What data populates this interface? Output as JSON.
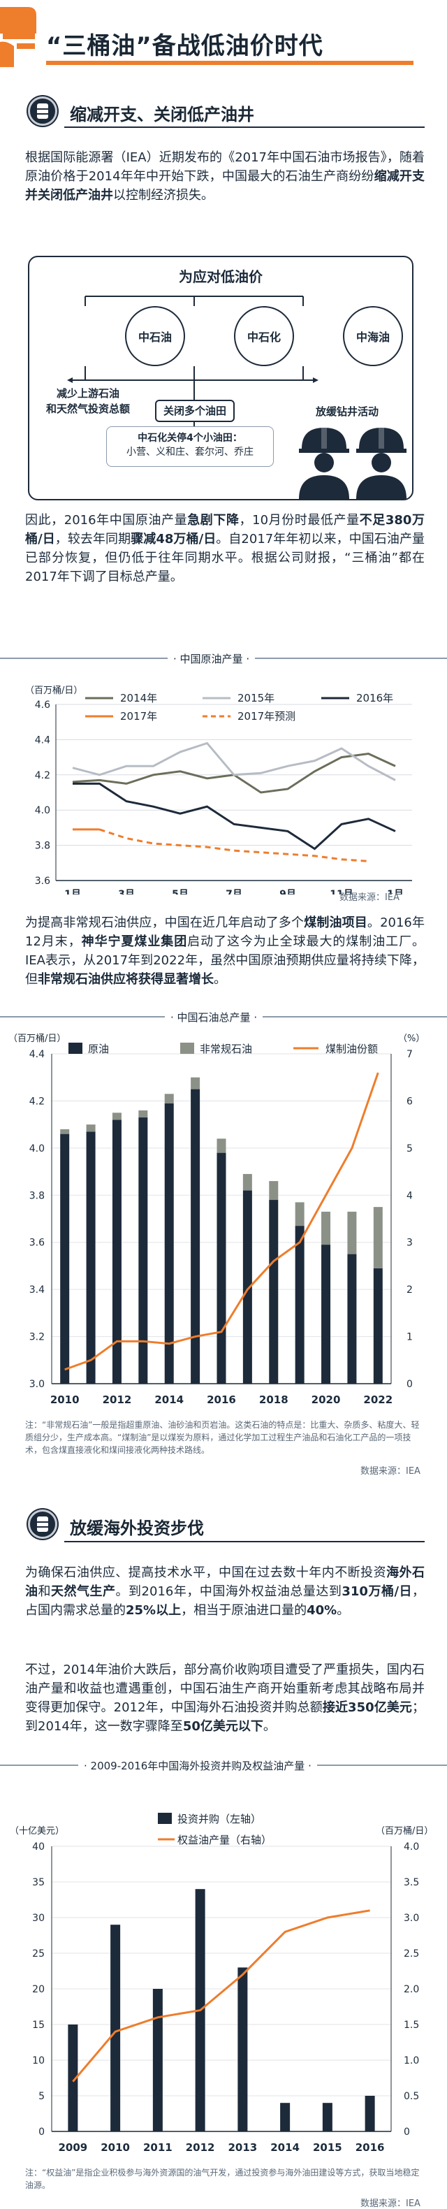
{
  "header": {
    "title": "“三桶油”备战低油价时代",
    "accent_color": "#ee7d2c",
    "dark_color": "#1d2a3a"
  },
  "section1": {
    "title": "缩减开支、关闭低产油井",
    "para1": [
      {
        "t": "根据国际能源署（IEA）近期发布的《2017年中国石油市场报告》，随着原油价格于2014年年中开始下跌，中国最大的石油生产商纷纷",
        "b": false
      },
      {
        "t": "缩减开支并关闭低产油井",
        "b": true
      },
      {
        "t": "以控制经济损失。",
        "b": false
      }
    ],
    "diagram": {
      "title": "为应对低油价",
      "companies": [
        "中石油",
        "中石化",
        "中海油"
      ],
      "action_left_1": "减少上游石油",
      "action_left_2": "和天然气投资总额",
      "action_mid": "关闭多个油田",
      "action_right": "放缓钻井活动",
      "sub_title": "中石化关停4个小油田：",
      "sub_list": "小营、义和庄、套尔河、乔庄"
    },
    "para2": [
      {
        "t": "因此，2016年中国原油产量",
        "b": false
      },
      {
        "t": "急剧下降",
        "b": true
      },
      {
        "t": "，10月份时最低产量",
        "b": false
      },
      {
        "t": "不足380万桶/日",
        "b": true
      },
      {
        "t": "，较去年同期",
        "b": false
      },
      {
        "t": "骤减48万桶/日",
        "b": true
      },
      {
        "t": "。自2017年年初以来，中国石油产量已部分恢复，但仍低于往年同期水平。根据公司财报，“三桶油”都在2017年下调了目标总产量。",
        "b": false
      }
    ]
  },
  "chart1": {
    "tag": "中国原油产量",
    "source": "数据来源：IEA"
  },
  "para3": [
    {
      "t": "为提高非常规石油供应，中国在近几年启动了多个",
      "b": false
    },
    {
      "t": "煤制油项目",
      "b": true
    },
    {
      "t": "。2016年12月末，",
      "b": false
    },
    {
      "t": "神华宁夏煤业集团",
      "b": true
    },
    {
      "t": "启动了这今为止全球最大的煤制油工厂。IEA表示，从2017年到2022年，虽然中国原油预期供应量将持续下降，但",
      "b": false
    },
    {
      "t": "非常规石油供应将获得显著增长",
      "b": true
    },
    {
      "t": "。",
      "b": false
    }
  ],
  "chart2": {
    "tag": "中国石油总产量",
    "note": "注：“非常规石油”一般是指超重原油、油砂油和页岩油。这类石油的特点是：比重大、杂质多、粘度大、轻质组分少，生产成本高。“煤制油”是以煤炭为原料，通过化学加工过程生产油品和石油化工产品的一项技术，包含煤直接液化和煤间接液化两种技术路线。",
    "source": "数据来源：IEA"
  },
  "section2": {
    "title": "放缓海外投资步伐",
    "para4": [
      {
        "t": "为确保石油供应、提高技术水平，中国在过去数十年内不断投资",
        "b": false
      },
      {
        "t": "海外石油",
        "b": true
      },
      {
        "t": "和",
        "b": false
      },
      {
        "t": "天然气生产",
        "b": true
      },
      {
        "t": "。到2016年，中国海外权益油总量达到",
        "b": false
      },
      {
        "t": "310万桶/日",
        "b": true
      },
      {
        "t": "，占国内需求总量的",
        "b": false
      },
      {
        "t": "25%以上",
        "b": true
      },
      {
        "t": "，相当于原油进口量的",
        "b": false
      },
      {
        "t": "40%",
        "b": true
      },
      {
        "t": "。",
        "b": false
      }
    ],
    "para5": [
      {
        "t": "不过，2014年油价大跌后，部分高价收购项目遭受了严重损失，国内石油产量和收益也遭遇重创，中国石油生产商开始重新考虑其战略布局并变得更加保守。2012年，中国海外石油投资并购总额",
        "b": false
      },
      {
        "t": "接近350亿美元",
        "b": true
      },
      {
        "t": "；到2014年，这一数字骤降至",
        "b": false
      },
      {
        "t": "50亿美元以下",
        "b": true
      },
      {
        "t": "。",
        "b": false
      }
    ]
  },
  "chart3": {
    "tag": "2009-2016年中国海外投资并购及权益油产量",
    "note": "注：“权益油”是指企业积极参与海外资源国的油气开发，通过投资参与海外油田建设等方式，获取当地稳定油源。",
    "source": "数据来源：IEA"
  },
  "chart_data": [
    {
      "type": "line",
      "title": "中国原油产量",
      "ylabel": "（百万桶/日）",
      "ylim": [
        3.6,
        4.6
      ],
      "yticks": [
        "3.6",
        "3.8",
        "4.0",
        "4.2",
        "4.4",
        "4.6"
      ],
      "xticks": [
        "1月",
        "3月",
        "5月",
        "7月",
        "9月",
        "11月",
        "1月"
      ],
      "x": [
        1,
        2,
        3,
        4,
        5,
        6,
        7,
        8,
        9,
        10,
        11,
        12,
        13
      ],
      "series": [
        {
          "name": "2014年",
          "color": "#6a6e5a",
          "style": "solid",
          "values": [
            4.16,
            4.17,
            4.15,
            4.2,
            4.22,
            4.18,
            4.2,
            4.1,
            4.12,
            4.22,
            4.3,
            4.32,
            4.25
          ]
        },
        {
          "name": "2015年",
          "color": "#b7bcc4",
          "style": "solid",
          "values": [
            4.24,
            4.2,
            4.25,
            4.25,
            4.33,
            4.38,
            4.2,
            4.21,
            4.25,
            4.28,
            4.35,
            4.25,
            4.17
          ]
        },
        {
          "name": "2016年",
          "color": "#1d2a3a",
          "style": "solid",
          "values": [
            4.15,
            4.15,
            4.05,
            4.02,
            3.98,
            4.02,
            3.92,
            3.9,
            3.88,
            3.78,
            3.92,
            3.95,
            3.88
          ]
        },
        {
          "name": "2017年",
          "color": "#ee7d2c",
          "style": "solid",
          "values": [
            3.89,
            3.89,
            null,
            null,
            null,
            null,
            null,
            null,
            null,
            null,
            null,
            null,
            null
          ]
        },
        {
          "name": "2017年预测",
          "color": "#ee7d2c",
          "style": "dashed",
          "values": [
            null,
            3.89,
            3.84,
            3.81,
            3.8,
            3.79,
            3.77,
            3.76,
            3.75,
            3.74,
            3.72,
            3.71,
            null
          ]
        }
      ]
    },
    {
      "type": "bar",
      "title": "中国石油总产量",
      "ylabel_left": "（百万桶/日）",
      "ylabel_right": "（%）",
      "ylim": [
        3.0,
        4.4
      ],
      "ylim_right": [
        0,
        7
      ],
      "yticks": [
        "3.0",
        "3.2",
        "3.4",
        "3.6",
        "3.8",
        "4.0",
        "4.2",
        "4.4"
      ],
      "yticks_right": [
        "0",
        "1",
        "2",
        "3",
        "4",
        "5",
        "6",
        "7"
      ],
      "categories": [
        "2010",
        "2011",
        "2012",
        "2013",
        "2014",
        "2015",
        "2016",
        "2017",
        "2018",
        "2019",
        "2020",
        "2021",
        "2022"
      ],
      "xticks": [
        "2010",
        "2012",
        "2014",
        "2016",
        "2018",
        "2020",
        "2022"
      ],
      "series": [
        {
          "name": "原油",
          "color": "#1d2a3a",
          "values": [
            4.06,
            4.07,
            4.12,
            4.13,
            4.19,
            4.25,
            3.98,
            3.82,
            3.78,
            3.67,
            3.59,
            3.55,
            3.49
          ]
        },
        {
          "name": "非常规石油",
          "color": "#8c9188",
          "values": [
            0.02,
            0.03,
            0.03,
            0.03,
            0.04,
            0.05,
            0.06,
            0.07,
            0.08,
            0.1,
            0.14,
            0.18,
            0.26
          ]
        },
        {
          "name": "煤制油份额",
          "color": "#ee7d2c",
          "axis": "right",
          "values": [
            0.3,
            0.5,
            0.9,
            0.9,
            0.85,
            1.0,
            1.1,
            2.0,
            2.6,
            3.0,
            4.0,
            5.0,
            6.6
          ]
        }
      ]
    },
    {
      "type": "bar",
      "title": "2009-2016年中国海外投资并购及权益油产量",
      "ylabel_left": "（十亿美元）",
      "ylabel_right": "（百万桶/日）",
      "ylim": [
        0,
        40
      ],
      "ylim_right": [
        0,
        4.0
      ],
      "yticks": [
        "0",
        "5",
        "10",
        "15",
        "20",
        "25",
        "30",
        "35",
        "40"
      ],
      "yticks_right": [
        "0",
        "0.5",
        "1.0",
        "1.5",
        "2.0",
        "2.5",
        "3.0",
        "3.5",
        "4.0"
      ],
      "categories": [
        "2009",
        "2010",
        "2011",
        "2012",
        "2013",
        "2014",
        "2015",
        "2016"
      ],
      "series": [
        {
          "name": "投资并购（左轴）",
          "color": "#1d2a3a",
          "values": [
            15,
            29,
            20,
            34,
            23,
            4,
            4,
            5
          ]
        },
        {
          "name": "权益油产量（右轴）",
          "color": "#ee7d2c",
          "axis": "right",
          "values": [
            0.7,
            1.4,
            1.6,
            1.7,
            2.2,
            2.8,
            3.0,
            3.1
          ]
        }
      ]
    }
  ]
}
